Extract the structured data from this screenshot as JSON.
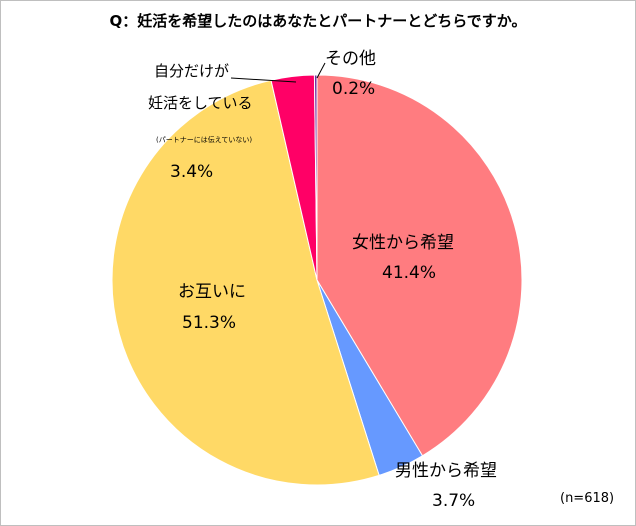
{
  "chart_data": {
    "type": "pie",
    "title": "Q：妊活を希望したのはあなたとパートナーとどちらですか。",
    "note": "(n=618)",
    "slices": [
      {
        "name": "女性から希望",
        "value": 41.4,
        "display": "41.4%",
        "color": "#ff7c80"
      },
      {
        "name": "男性から希望",
        "value": 3.7,
        "display": "3.7%",
        "color": "#6699ff"
      },
      {
        "name": "お互いに",
        "value": 51.3,
        "display": "51.3%",
        "color": "#ffd966"
      },
      {
        "name_line1": "自分だけが",
        "name_line2": "妊活をしている",
        "name_sub": "(パートナーには伝えていない)",
        "value": 3.4,
        "display": "3.4%",
        "color": "#ff0066"
      },
      {
        "name": "その他",
        "value": 0.2,
        "display": "0.2%",
        "color": "#7030a0"
      }
    ]
  }
}
